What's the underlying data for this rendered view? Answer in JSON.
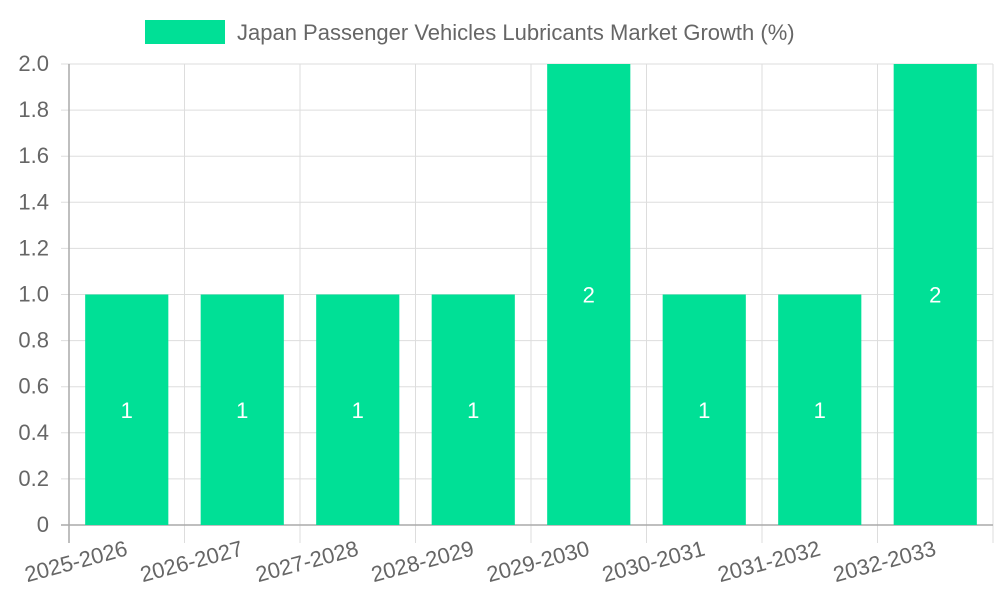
{
  "colors": {
    "bar": "#00e096",
    "grid": "#dddddd",
    "axis": "#aaaaaa",
    "tick_text": "#666666",
    "legend_text": "#666666",
    "data_label": "#ffffff"
  },
  "chart_data": {
    "type": "bar",
    "title": "",
    "xlabel": "",
    "ylabel": "",
    "legend_position": "top-center",
    "categories": [
      "2025-2026",
      "2026-2027",
      "2027-2028",
      "2028-2029",
      "2029-2030",
      "2030-2031",
      "2031-2032",
      "2032-2033"
    ],
    "series": [
      {
        "name": "Japan Passenger Vehicles Lubricants Market Growth (%)",
        "values": [
          1,
          1,
          1,
          1,
          2,
          1,
          1,
          2
        ],
        "data_labels": [
          "1",
          "1",
          "1",
          "1",
          "2",
          "1",
          "1",
          "2"
        ]
      }
    ],
    "ylim": [
      0,
      2.0
    ],
    "y_ticks": [
      "0",
      "0.2",
      "0.4",
      "0.6",
      "0.8",
      "1.0",
      "1.2",
      "1.4",
      "1.6",
      "1.8",
      "2.0"
    ],
    "grid": true
  }
}
